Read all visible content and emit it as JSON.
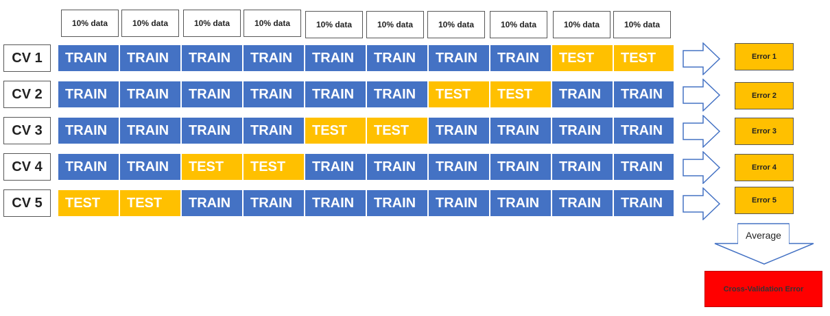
{
  "headers": [
    "10% data",
    "10% data",
    "10% data",
    "10% data",
    "10% data",
    "10% data",
    "10% data",
    "10% data",
    "10% data",
    "10% data"
  ],
  "rows": [
    {
      "label": "CV 1",
      "cells": [
        "TRAIN",
        "TRAIN",
        "TRAIN",
        "TRAIN",
        "TRAIN",
        "TRAIN",
        "TRAIN",
        "TRAIN",
        "TEST",
        "TEST"
      ],
      "error": "Error 1"
    },
    {
      "label": "CV 2",
      "cells": [
        "TRAIN",
        "TRAIN",
        "TRAIN",
        "TRAIN",
        "TRAIN",
        "TRAIN",
        "TEST",
        "TEST",
        "TRAIN",
        "TRAIN"
      ],
      "error": "Error 2"
    },
    {
      "label": "CV 3",
      "cells": [
        "TRAIN",
        "TRAIN",
        "TRAIN",
        "TRAIN",
        "TEST",
        "TEST",
        "TRAIN",
        "TRAIN",
        "TRAIN",
        "TRAIN"
      ],
      "error": "Error 3"
    },
    {
      "label": "CV 4",
      "cells": [
        "TRAIN",
        "TRAIN",
        "TEST",
        "TEST",
        "TRAIN",
        "TRAIN",
        "TRAIN",
        "TRAIN",
        "TRAIN",
        "TRAIN"
      ],
      "error": "Error 4"
    },
    {
      "label": "CV 5",
      "cells": [
        "TEST",
        "TEST",
        "TRAIN",
        "TRAIN",
        "TRAIN",
        "TRAIN",
        "TRAIN",
        "TRAIN",
        "TRAIN",
        "TRAIN"
      ],
      "error": "Error 5"
    }
  ],
  "average_label": "Average",
  "result_label": "Cross-Validation Error",
  "colors": {
    "train": "#4472c4",
    "test": "#ffc000",
    "result": "#ff0000",
    "arrow_stroke": "#4472c4"
  }
}
